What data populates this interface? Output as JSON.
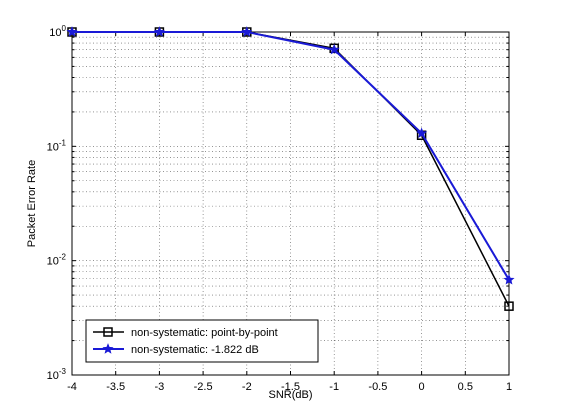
{
  "chart_data": {
    "type": "line",
    "xlabel": "SNR(dB)",
    "ylabel": "Packet Error Rate",
    "xlim": [
      -4,
      1
    ],
    "ylim": [
      0.001,
      1
    ],
    "yscale": "log",
    "grid": true,
    "legend_position": "bottom-left",
    "x_ticks": [
      -4,
      -3.5,
      -3,
      -2.5,
      -2,
      -1.5,
      -1,
      -0.5,
      0,
      0.5,
      1
    ],
    "x_tick_labels": [
      "-4",
      "-3.5",
      "-3",
      "-2.5",
      "-2",
      "-1.5",
      "-1",
      "-0.5",
      "0",
      "0.5",
      "1"
    ],
    "y_ticks": [
      {
        "value": 0.001,
        "base": "10",
        "exp": "-3"
      },
      {
        "value": 0.01,
        "base": "10",
        "exp": "-2"
      },
      {
        "value": 0.1,
        "base": "10",
        "exp": "-1"
      },
      {
        "value": 1,
        "base": "10",
        "exp": "0"
      }
    ],
    "series": [
      {
        "name": "non-systematic: point-by-point",
        "color": "#000000",
        "marker": "square",
        "x": [
          -4,
          -3,
          -2,
          -1,
          0,
          1
        ],
        "y": [
          1.0,
          1.0,
          1.0,
          0.72,
          0.125,
          0.004
        ]
      },
      {
        "name": "non-systematic: -1.822 dB",
        "color": "#1a1ad6",
        "marker": "star",
        "x": [
          -4,
          -3,
          -2,
          -1,
          0,
          1
        ],
        "y": [
          1.0,
          1.0,
          1.0,
          0.7,
          0.13,
          0.0068
        ]
      }
    ]
  }
}
